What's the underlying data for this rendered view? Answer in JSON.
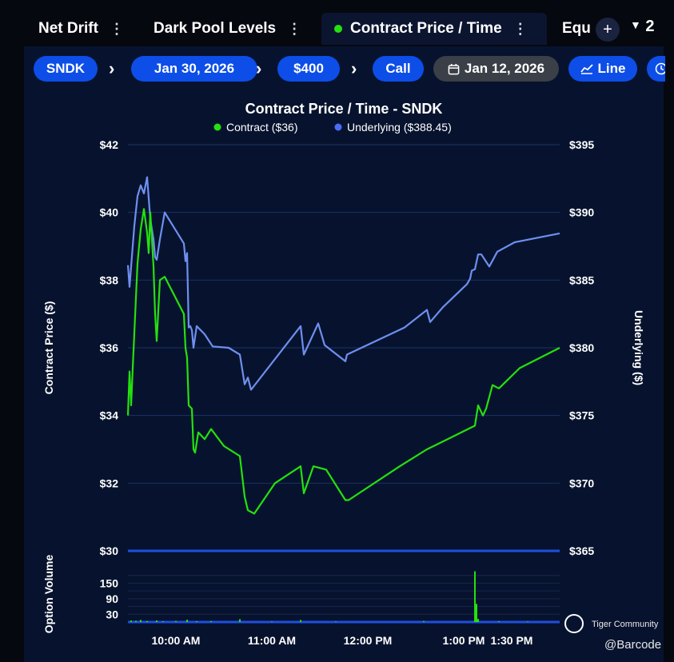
{
  "tabs": [
    {
      "label": "Net Drift"
    },
    {
      "label": "Dark Pool Levels"
    },
    {
      "label": "Contract Price / Time"
    },
    {
      "label": "Equ"
    }
  ],
  "tab_overflow": "2",
  "crumbs": {
    "ticker": "SNDK",
    "expiry": "Jan 30, 2026",
    "strike": "$400",
    "type": "Call",
    "date": "Jan 12, 2026",
    "view": "Line"
  },
  "colors": {
    "contract": "#25e00f",
    "underlying": "#6f8ff0",
    "volume_line": "#1f4fe0",
    "accent": "#0d4ee8"
  },
  "watermark": {
    "name": "Tiger Community",
    "handle": "@Barcode"
  },
  "chart_data": {
    "type": "line",
    "title": "Contract Price / Time - SNDK",
    "legend": [
      {
        "name": "Contract ($36)",
        "color": "#25e00f"
      },
      {
        "name": "Underlying ($388.45)",
        "color": "#4a6cf7"
      }
    ],
    "legend_position": "top-center",
    "ylabel_left": "Contract Price ($)",
    "ylabel_right": "Underlying ($)",
    "ylabel_volume": "Option Volume",
    "y_left": {
      "min": 30,
      "max": 42,
      "ticks": [
        "$42",
        "$40",
        "$38",
        "$36",
        "$34",
        "$32",
        "$30"
      ],
      "tick_values": [
        42,
        40,
        38,
        36,
        34,
        32,
        30
      ]
    },
    "y_right": {
      "min": 365,
      "max": 395,
      "ticks": [
        "$395",
        "$390",
        "$385",
        "$380",
        "$375",
        "$370",
        "$365"
      ],
      "tick_values": [
        395,
        390,
        385,
        380,
        375,
        370,
        365
      ]
    },
    "x_range": [
      "09:30",
      "14:00"
    ],
    "x_ticks": [
      {
        "label": "10:00 AM",
        "time": "10:00"
      },
      {
        "label": "11:00 AM",
        "time": "11:00"
      },
      {
        "label": "12:00 PM",
        "time": "12:00"
      },
      {
        "label": "1:00 PM",
        "time": "13:00"
      },
      {
        "label": "1:30 PM",
        "time": "13:30"
      }
    ],
    "grid": true,
    "contract_series": [
      [
        "09:30",
        34.0
      ],
      [
        "09:31",
        35.3
      ],
      [
        "09:32",
        34.3
      ],
      [
        "09:33",
        35.4
      ],
      [
        "09:36",
        38.5
      ],
      [
        "09:38",
        39.5
      ],
      [
        "09:40",
        40.1
      ],
      [
        "09:42",
        39.4
      ],
      [
        "09:43",
        38.8
      ],
      [
        "09:44",
        40.0
      ],
      [
        "09:46",
        38.4
      ],
      [
        "09:47",
        37.0
      ],
      [
        "09:48",
        36.2
      ],
      [
        "09:50",
        38.0
      ],
      [
        "09:53",
        38.1
      ],
      [
        "10:05",
        37.0
      ],
      [
        "10:06",
        36.0
      ],
      [
        "10:07",
        35.7
      ],
      [
        "10:08",
        34.3
      ],
      [
        "10:10",
        34.2
      ],
      [
        "10:11",
        33.0
      ],
      [
        "10:12",
        32.9
      ],
      [
        "10:14",
        33.5
      ],
      [
        "10:18",
        33.3
      ],
      [
        "10:22",
        33.6
      ],
      [
        "10:30",
        33.1
      ],
      [
        "10:40",
        32.8
      ],
      [
        "10:43",
        31.6
      ],
      [
        "10:45",
        31.2
      ],
      [
        "10:49",
        31.1
      ],
      [
        "11:02",
        32.0
      ],
      [
        "11:18",
        32.5
      ],
      [
        "11:20",
        31.7
      ],
      [
        "11:26",
        32.5
      ],
      [
        "11:34",
        32.4
      ],
      [
        "11:46",
        31.5
      ],
      [
        "11:48",
        31.5
      ],
      [
        "12:20",
        32.5
      ],
      [
        "12:37",
        33.0
      ],
      [
        "12:50",
        33.3
      ],
      [
        "13:07",
        33.7
      ],
      [
        "13:09",
        34.3
      ],
      [
        "13:12",
        34.0
      ],
      [
        "13:14",
        34.2
      ],
      [
        "13:18",
        34.9
      ],
      [
        "13:22",
        34.8
      ],
      [
        "13:35",
        35.4
      ],
      [
        "14:00",
        36.0
      ]
    ],
    "underlying_series": [
      [
        "09:30",
        386.1
      ],
      [
        "09:31",
        384.5
      ],
      [
        "09:32",
        386.0
      ],
      [
        "09:34",
        389.0
      ],
      [
        "09:36",
        391.2
      ],
      [
        "09:38",
        392.0
      ],
      [
        "09:40",
        391.4
      ],
      [
        "09:42",
        392.6
      ],
      [
        "09:44",
        389.5
      ],
      [
        "09:46",
        388.0
      ],
      [
        "09:47",
        386.7
      ],
      [
        "09:48",
        386.5
      ],
      [
        "09:50",
        388.0
      ],
      [
        "09:53",
        390.0
      ],
      [
        "10:05",
        387.7
      ],
      [
        "10:06",
        386.4
      ],
      [
        "10:07",
        387.0
      ],
      [
        "10:08",
        381.5
      ],
      [
        "10:09",
        381.6
      ],
      [
        "10:10",
        381.3
      ],
      [
        "10:11",
        380.0
      ],
      [
        "10:13",
        381.6
      ],
      [
        "10:18",
        381.0
      ],
      [
        "10:23",
        380.1
      ],
      [
        "10:33",
        380.0
      ],
      [
        "10:40",
        379.5
      ],
      [
        "10:43",
        377.3
      ],
      [
        "10:45",
        377.8
      ],
      [
        "10:47",
        376.9
      ],
      [
        "11:18",
        381.6
      ],
      [
        "11:20",
        379.5
      ],
      [
        "11:29",
        381.8
      ],
      [
        "11:33",
        380.2
      ],
      [
        "11:46",
        379.0
      ],
      [
        "11:47",
        379.5
      ],
      [
        "12:23",
        381.5
      ],
      [
        "12:37",
        382.8
      ],
      [
        "12:39",
        381.9
      ],
      [
        "12:47",
        383.0
      ],
      [
        "13:02",
        384.7
      ],
      [
        "13:04",
        385.1
      ],
      [
        "13:05",
        385.7
      ],
      [
        "13:07",
        385.8
      ],
      [
        "13:09",
        386.9
      ],
      [
        "13:11",
        386.9
      ],
      [
        "13:16",
        386.0
      ],
      [
        "13:21",
        387.1
      ],
      [
        "13:32",
        387.8
      ],
      [
        "14:00",
        388.45
      ]
    ],
    "volume": {
      "ticks": [
        "150",
        "90",
        "30"
      ],
      "tick_values": [
        150,
        90,
        30
      ],
      "max": 210,
      "bars": [
        [
          "09:32",
          6
        ],
        [
          "09:35",
          5
        ],
        [
          "09:38",
          8
        ],
        [
          "09:42",
          4
        ],
        [
          "09:48",
          6
        ],
        [
          "09:52",
          3
        ],
        [
          "10:00",
          4
        ],
        [
          "10:07",
          9
        ],
        [
          "10:13",
          3
        ],
        [
          "10:22",
          4
        ],
        [
          "10:40",
          11
        ],
        [
          "11:00",
          2
        ],
        [
          "11:18",
          8
        ],
        [
          "11:40",
          2
        ],
        [
          "12:35",
          4
        ],
        [
          "13:07",
          196
        ],
        [
          "13:08",
          70
        ],
        [
          "13:09",
          12
        ],
        [
          "13:22",
          3
        ],
        [
          "13:40",
          2
        ]
      ]
    }
  }
}
